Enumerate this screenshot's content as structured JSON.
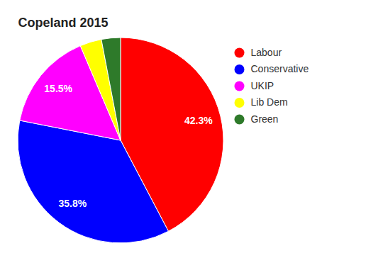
{
  "chart_data": {
    "type": "pie",
    "title": "Copeland 2015",
    "categories": [
      "Labour",
      "Conservative",
      "UKIP",
      "Lib Dem",
      "Green"
    ],
    "values": [
      42.3,
      35.8,
      15.5,
      3.4,
      3.0
    ],
    "value_labels": [
      "42.3%",
      "35.8%",
      "15.5%",
      null,
      null
    ],
    "colors": [
      "#ff0000",
      "#0000ff",
      "#ff00ff",
      "#ffff00",
      "#2e7a2a"
    ],
    "data_labels": true,
    "legend": "right"
  }
}
